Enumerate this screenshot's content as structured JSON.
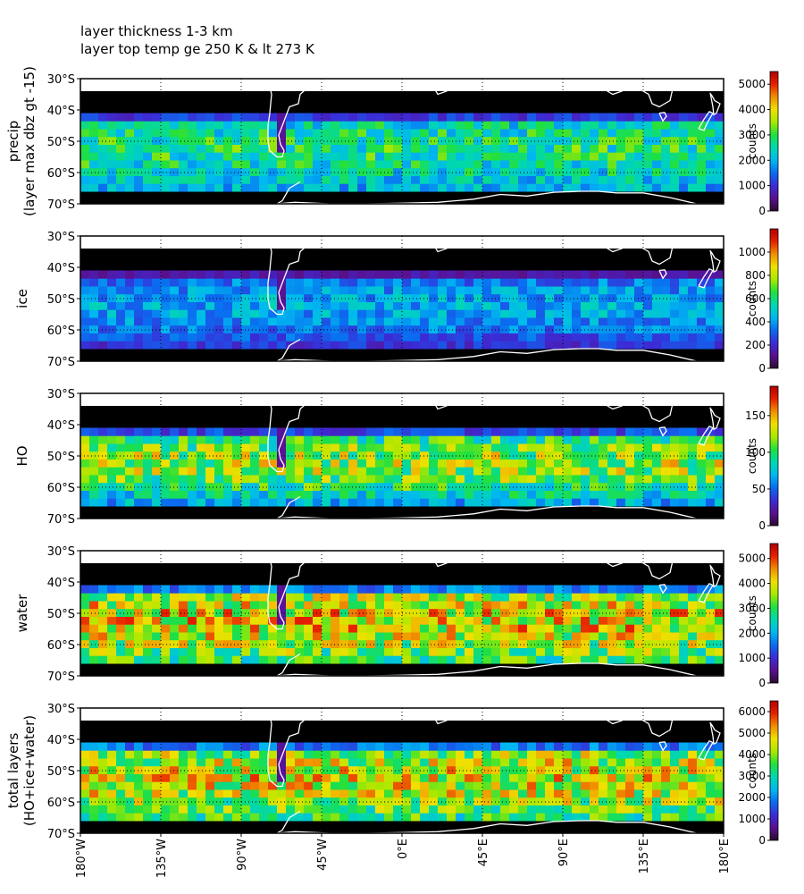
{
  "figure": {
    "title_lines": [
      "layer thickness 1-3 km",
      "layer top temp ge 250 K & lt 273 K"
    ]
  },
  "colormap": {
    "name": "rainbow",
    "stops": [
      "#2a0a2e",
      "#5a1090",
      "#3b2cd6",
      "#0a6cf0",
      "#00b8f0",
      "#00d8b0",
      "#20e040",
      "#a8e800",
      "#f0e000",
      "#f09000",
      "#e82000",
      "#b00000"
    ],
    "mask_color": "#000000",
    "coastline_color": "#ffffff"
  },
  "chart_data": [
    {
      "type": "heatmap",
      "row_label": [
        "precip",
        "(layer max dbz gt -15)"
      ],
      "colorbar": {
        "label": "counts",
        "min": 0,
        "max": 5500,
        "ticks": [
          0,
          1000,
          2000,
          3000,
          4000,
          5000
        ]
      },
      "xlim": [
        -180,
        180
      ],
      "ylim": [
        -70,
        -30
      ],
      "x_ticks": [
        "180°W",
        "135°W",
        "90°W",
        "45°W",
        "0°E",
        "45°E",
        "90°E",
        "135°E",
        "180°E"
      ],
      "y_ticks": [
        "30°S",
        "40°S",
        "50°S",
        "60°S",
        "70°S"
      ],
      "data_lat_range": [
        -66,
        -41
      ],
      "grid": {
        "lon_step": 5,
        "lat_step": 2.5
      },
      "typical_range": [
        1500,
        2700
      ]
    },
    {
      "type": "heatmap",
      "row_label": [
        "ice"
      ],
      "colorbar": {
        "label": "counts",
        "min": 0,
        "max": 1200,
        "ticks": [
          0,
          200,
          400,
          600,
          800,
          1000
        ]
      },
      "xlim": [
        -180,
        180
      ],
      "ylim": [
        -70,
        -30
      ],
      "x_ticks": [
        "180°W",
        "135°W",
        "90°W",
        "45°W",
        "0°E",
        "45°E",
        "90°E",
        "135°E",
        "180°E"
      ],
      "y_ticks": [
        "30°S",
        "40°S",
        "50°S",
        "60°S",
        "70°S"
      ],
      "data_lat_range": [
        -66,
        -41
      ],
      "grid": {
        "lon_step": 5,
        "lat_step": 2.5
      },
      "typical_range": [
        100,
        420
      ]
    },
    {
      "type": "heatmap",
      "row_label": [
        "HO"
      ],
      "colorbar": {
        "label": "counts",
        "min": 0,
        "max": 190,
        "ticks": [
          0,
          50,
          100,
          150
        ]
      },
      "xlim": [
        -180,
        180
      ],
      "ylim": [
        -70,
        -30
      ],
      "x_ticks": [
        "180°W",
        "135°W",
        "90°W",
        "45°W",
        "0°E",
        "45°E",
        "90°E",
        "135°E",
        "180°E"
      ],
      "y_ticks": [
        "30°S",
        "40°S",
        "50°S",
        "60°S",
        "70°S"
      ],
      "data_lat_range": [
        -66,
        -41
      ],
      "grid": {
        "lon_step": 5,
        "lat_step": 2.5
      },
      "typical_range": [
        30,
        120
      ]
    },
    {
      "type": "heatmap",
      "row_label": [
        "water"
      ],
      "colorbar": {
        "label": "counts",
        "min": 0,
        "max": 5600,
        "ticks": [
          0,
          1000,
          2000,
          3000,
          4000,
          5000
        ]
      },
      "xlim": [
        -180,
        180
      ],
      "ylim": [
        -70,
        -30
      ],
      "x_ticks": [
        "180°W",
        "135°W",
        "90°W",
        "45°W",
        "0°E",
        "45°E",
        "90°E",
        "135°E",
        "180°E"
      ],
      "y_ticks": [
        "30°S",
        "40°S",
        "50°S",
        "60°S",
        "70°S"
      ],
      "data_lat_range": [
        -66,
        -41
      ],
      "grid": {
        "lon_step": 5,
        "lat_step": 2.5
      },
      "typical_range": [
        2200,
        4000
      ]
    },
    {
      "type": "heatmap",
      "row_label": [
        "total layers",
        "(HO+ice+water)"
      ],
      "colorbar": {
        "label": "counts",
        "min": 0,
        "max": 6500,
        "ticks": [
          0,
          1000,
          2000,
          3000,
          4000,
          5000,
          6000
        ]
      },
      "xlim": [
        -180,
        180
      ],
      "ylim": [
        -70,
        -30
      ],
      "x_ticks": [
        "180°W",
        "135°W",
        "90°W",
        "45°W",
        "0°E",
        "45°E",
        "90°E",
        "135°E",
        "180°E"
      ],
      "y_ticks": [
        "30°S",
        "40°S",
        "50°S",
        "60°S",
        "70°S"
      ],
      "data_lat_range": [
        -66,
        -41
      ],
      "grid": {
        "lon_step": 5,
        "lat_step": 2.5
      },
      "typical_range": [
        2500,
        4500
      ]
    }
  ]
}
